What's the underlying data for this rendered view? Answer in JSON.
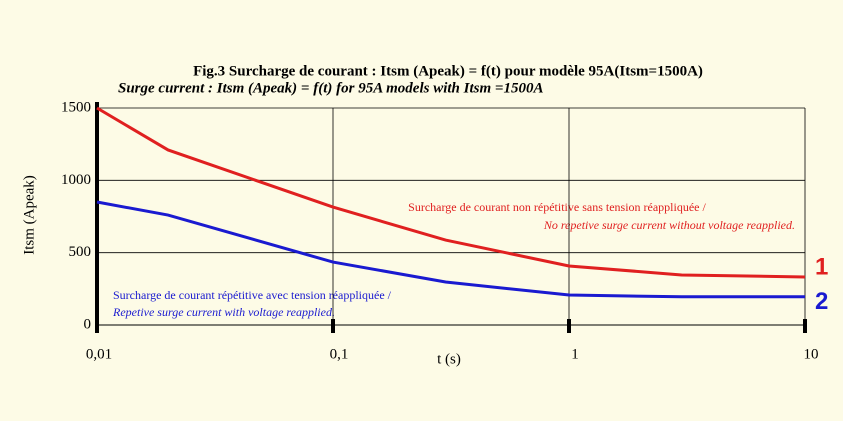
{
  "chart_data": {
    "type": "line",
    "title": "Fig.3  Surcharge de courant : Itsm (Apeak) = f(t) pour modèle 95A(Itsm=1500A)",
    "subtitle": "Surge current  : Itsm (Apeak) = f(t)  for 95A models with Itsm =1500A",
    "x_label": "t (s)",
    "y_label": "Itsm (Apeak)",
    "x": [
      0.01,
      0.02,
      0.1,
      0.3,
      1,
      3,
      10
    ],
    "series": [
      {
        "name": "1",
        "color": "#e02020",
        "values": [
          1500,
          1210,
          815,
          587,
          408,
          346,
          332
        ]
      },
      {
        "name": "2",
        "color": "#1a1ad0",
        "values": [
          850,
          760,
          435,
          297,
          207,
          195,
          195
        ]
      }
    ],
    "annotations": [
      [
        "Surcharge de courant non répétitive sans tension réappliquée /",
        "No repetive surge current without voltage reapplied."
      ],
      [
        "Surcharge de courant répétitive avec tension réappliquée /",
        "Repetive surge current with voltage reapplied."
      ]
    ],
    "x_log": true,
    "grid": true,
    "xlim": [
      0.01,
      10
    ],
    "xticks": [
      {
        "value": 0.01,
        "label": "0,01"
      },
      {
        "value": 0.1,
        "label": "0,1"
      },
      1,
      10
    ],
    "ylim": [
      0,
      1500
    ],
    "yticks": [
      0,
      500,
      1000,
      1500
    ]
  }
}
